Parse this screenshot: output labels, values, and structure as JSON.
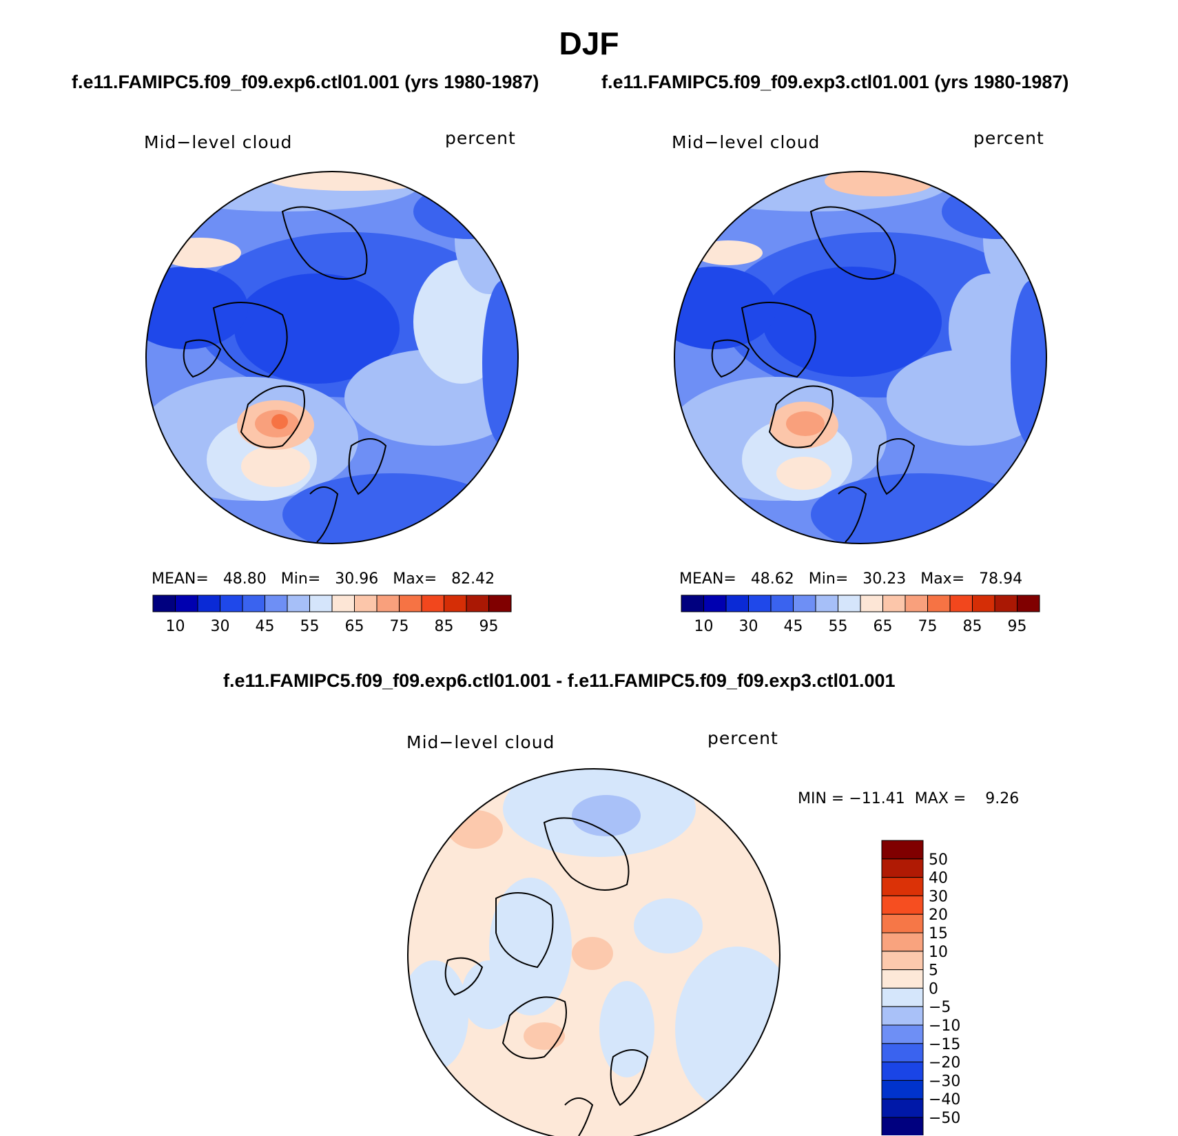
{
  "title": "DJF",
  "colors": {
    "abs_scale": [
      "#00007f",
      "#0000b0",
      "#0a2ad6",
      "#1f48ea",
      "#3a63ef",
      "#6e8ff5",
      "#a6bff8",
      "#d5e5fb",
      "#fde6d6",
      "#fcc6aa",
      "#f9a07c",
      "#f67344",
      "#f2471d",
      "#d52e06",
      "#aa1804",
      "#800000"
    ],
    "diff_scale": [
      "#00007f",
      "#0018a8",
      "#0033cc",
      "#1a45e6",
      "#3a63ef",
      "#6e8ff5",
      "#a9c1f8",
      "#d5e6fb",
      "#fde8d8",
      "#fcc9ad",
      "#f9a37e",
      "#f67747",
      "#f64e20",
      "#db3207",
      "#b01a04",
      "#800000"
    ],
    "land_outline": "#000000"
  },
  "panels": [
    {
      "run_title": "f.e11.FAMIPC5.f09_f09.exp6.ctl01.001 (yrs 1980-1987)",
      "variable": "Mid−level cloud",
      "units": "percent",
      "mean_label": "MEAN=",
      "mean": "48.80",
      "min_label": "Min=",
      "min": "30.96",
      "max_label": "Max=",
      "max": "82.42",
      "colorbar_ticks": [
        "10",
        "30",
        "45",
        "55",
        "65",
        "75",
        "85",
        "95"
      ]
    },
    {
      "run_title": "f.e11.FAMIPC5.f09_f09.exp3.ctl01.001 (yrs 1980-1987)",
      "variable": "Mid−level cloud",
      "units": "percent",
      "mean_label": "MEAN=",
      "mean": "48.62",
      "min_label": "Min=",
      "min": "30.23",
      "max_label": "Max=",
      "max": "78.94",
      "colorbar_ticks": [
        "10",
        "30",
        "45",
        "55",
        "65",
        "75",
        "85",
        "95"
      ]
    }
  ],
  "difference": {
    "title": "f.e11.FAMIPC5.f09_f09.exp6.ctl01.001 - f.e11.FAMIPC5.f09_f09.exp3.ctl01.001",
    "variable": "Mid−level cloud",
    "units": "percent",
    "min_label": "MIN =",
    "min": "−11.41",
    "max_label": "MAX =",
    "max": "9.26",
    "colorbar_ticks": [
      "50",
      "40",
      "30",
      "20",
      "15",
      "10",
      "5",
      "0",
      "−5",
      "−10",
      "−15",
      "−20",
      "−30",
      "−40",
      "−50"
    ]
  }
}
